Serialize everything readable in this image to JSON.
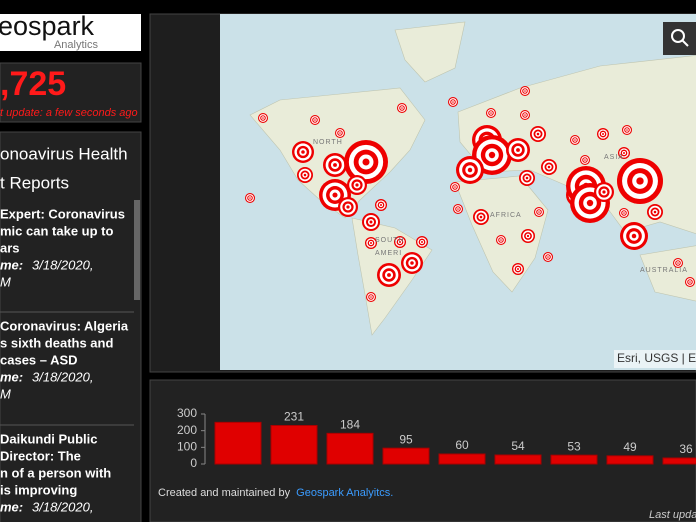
{
  "logo": {
    "name": "eospark",
    "sub": "Analytics"
  },
  "stats": {
    "count": ",725",
    "updated": "t update: a few seconds ago"
  },
  "news": {
    "title": [
      "onoavirus Health",
      "t Reports"
    ],
    "items": [
      {
        "lines": [
          "Expert: Coronavirus",
          "mic can take up to",
          "ars"
        ],
        "time_label": "me:",
        "time": "3/18/2020,",
        "time2": "M"
      },
      {
        "lines": [
          "Coronavirus: Algeria",
          "s sixth deaths and",
          " cases – ASD"
        ],
        "time_label": "me:",
        "time": "3/18/2020,",
        "time2": "M"
      },
      {
        "lines": [
          "Daikundi Public",
          "Director: The",
          "n of a person with",
          " is improving"
        ],
        "time_label": "me:",
        "time": "3/18/2020,"
      }
    ]
  },
  "map": {
    "labels": [
      "NORTH",
      "SOUTH",
      "AMERI",
      "AFRICA",
      "ASIA",
      "AUSTRALIA"
    ],
    "attribution": "Esri, USGS | E"
  },
  "chart_data": {
    "type": "bar",
    "values": [
      250,
      231,
      184,
      95,
      60,
      54,
      53,
      49,
      36
    ],
    "value_labels": [
      null,
      "231",
      "184",
      "95",
      "60",
      "54",
      "53",
      "49",
      "36"
    ],
    "color": "#e00000",
    "ylim": [
      0,
      300
    ],
    "yticks": [
      0,
      100,
      200,
      300
    ]
  },
  "footer": {
    "credit": "Created and maintained by ",
    "link": "Geospark Analyitcs.",
    "updated": "Last upda"
  }
}
